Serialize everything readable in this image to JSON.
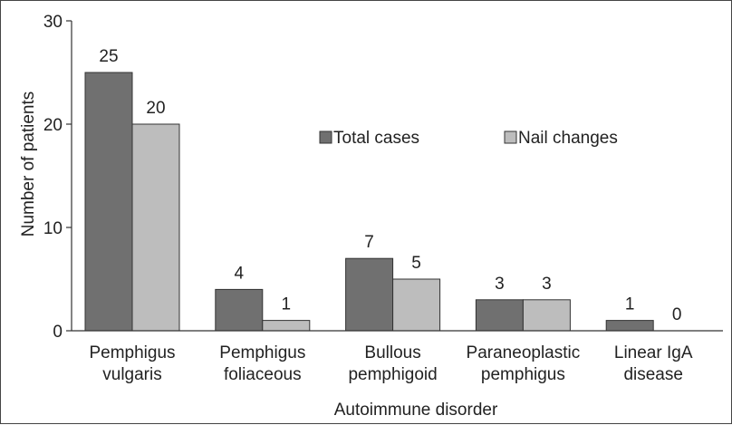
{
  "chart_data": {
    "type": "bar",
    "categories": [
      [
        "Pemphigus",
        "vulgaris"
      ],
      [
        "Pemphigus",
        "foliaceous"
      ],
      [
        "Bullous",
        "pemphigoid"
      ],
      [
        "Paraneoplastic",
        "pemphigus"
      ],
      [
        "Linear IgA",
        "disease"
      ]
    ],
    "series": [
      {
        "name": "Total cases",
        "values": [
          25,
          4,
          7,
          3,
          1
        ],
        "color": "#707070"
      },
      {
        "name": "Nail changes",
        "values": [
          20,
          1,
          5,
          3,
          0
        ],
        "color": "#bdbdbd"
      }
    ],
    "xlabel": "Autoimmune disorder",
    "ylabel": "Number of patients",
    "ylim": [
      0,
      30
    ],
    "yticks": [
      0,
      10,
      20,
      30
    ],
    "grid": false,
    "legend_position": "top-right"
  }
}
